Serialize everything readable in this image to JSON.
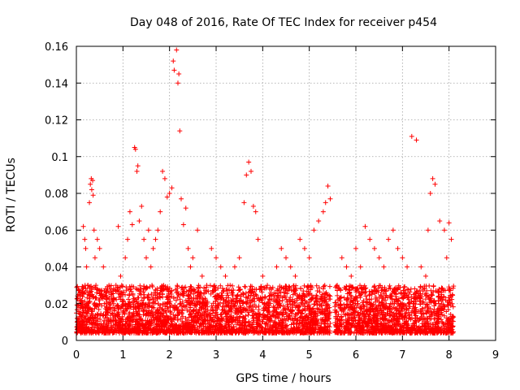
{
  "chart_data": {
    "type": "scatter",
    "title": "Day 048 of 2016, Rate Of TEC Index for receiver p454",
    "xlabel": "GPS time / hours",
    "ylabel": "ROTI / TECUs",
    "xlim": [
      0,
      9
    ],
    "ylim": [
      0,
      0.16
    ],
    "xticks": [
      "0",
      "1",
      "2",
      "3",
      "4",
      "5",
      "6",
      "7",
      "8",
      "9"
    ],
    "yticks": [
      "0",
      "0.02",
      "0.04",
      "0.06",
      "0.08",
      "0.1",
      "0.12",
      "0.14",
      "0.16"
    ],
    "grid": true,
    "marker": "plus",
    "color": "#ff0000",
    "series": [
      {
        "name": "ROTI",
        "x": [
          0.02,
          0.05,
          0.1,
          0.15,
          0.18,
          0.2,
          0.22,
          0.25,
          0.28,
          0.3,
          0.32,
          0.33,
          0.35,
          0.36,
          0.38,
          0.4,
          0.42,
          0.45,
          0.5,
          0.55,
          0.58,
          0.6,
          0.65,
          0.7,
          0.75,
          0.8,
          0.85,
          0.9,
          0.95,
          1.0,
          1.05,
          1.1,
          1.15,
          1.2,
          1.25,
          1.27,
          1.3,
          1.32,
          1.35,
          1.4,
          1.45,
          1.5,
          1.55,
          1.6,
          1.65,
          1.7,
          1.75,
          1.8,
          1.85,
          1.9,
          1.95,
          2.0,
          2.05,
          2.08,
          2.1,
          2.15,
          2.18,
          2.2,
          2.22,
          2.25,
          2.3,
          2.35,
          2.4,
          2.45,
          2.5,
          2.6,
          2.7,
          2.8,
          2.9,
          3.0,
          3.1,
          3.2,
          3.3,
          3.4,
          3.5,
          3.6,
          3.65,
          3.7,
          3.75,
          3.8,
          3.85,
          3.9,
          4.0,
          4.1,
          4.2,
          4.3,
          4.4,
          4.5,
          4.6,
          4.7,
          4.8,
          4.9,
          5.0,
          5.1,
          5.2,
          5.3,
          5.35,
          5.4,
          5.45,
          5.6,
          5.7,
          5.8,
          5.9,
          6.0,
          6.1,
          6.2,
          6.3,
          6.4,
          6.5,
          6.6,
          6.7,
          6.8,
          6.9,
          7.0,
          7.1,
          7.2,
          7.3,
          7.4,
          7.5,
          7.55,
          7.6,
          7.65,
          7.7,
          7.8,
          7.9,
          7.95,
          8.0,
          8.05
        ],
        "y": [
          0.012,
          0.025,
          0.018,
          0.062,
          0.055,
          0.05,
          0.04,
          0.03,
          0.075,
          0.085,
          0.088,
          0.082,
          0.087,
          0.079,
          0.06,
          0.045,
          0.03,
          0.055,
          0.05,
          0.025,
          0.04,
          0.02,
          0.018,
          0.03,
          0.025,
          0.02,
          0.03,
          0.062,
          0.035,
          0.025,
          0.045,
          0.055,
          0.07,
          0.063,
          0.105,
          0.104,
          0.092,
          0.095,
          0.065,
          0.073,
          0.055,
          0.045,
          0.06,
          0.04,
          0.05,
          0.055,
          0.06,
          0.07,
          0.092,
          0.088,
          0.078,
          0.08,
          0.083,
          0.152,
          0.147,
          0.158,
          0.14,
          0.145,
          0.114,
          0.077,
          0.063,
          0.072,
          0.05,
          0.04,
          0.045,
          0.06,
          0.035,
          0.03,
          0.05,
          0.045,
          0.04,
          0.035,
          0.03,
          0.04,
          0.045,
          0.075,
          0.09,
          0.097,
          0.092,
          0.073,
          0.07,
          0.055,
          0.035,
          0.03,
          0.025,
          0.04,
          0.05,
          0.045,
          0.04,
          0.035,
          0.055,
          0.05,
          0.045,
          0.06,
          0.065,
          0.07,
          0.075,
          0.084,
          0.077,
          0.03,
          0.045,
          0.04,
          0.035,
          0.05,
          0.04,
          0.062,
          0.055,
          0.05,
          0.045,
          0.04,
          0.055,
          0.06,
          0.05,
          0.045,
          0.04,
          0.111,
          0.109,
          0.04,
          0.035,
          0.06,
          0.08,
          0.088,
          0.085,
          0.065,
          0.06,
          0.045,
          0.064,
          0.055
        ]
      }
    ],
    "dense_band": {
      "description_note": "",
      "segments": [
        {
          "x_start": 0.0,
          "x_end": 5.45,
          "y_min": 0.004,
          "y_max": 0.03
        },
        {
          "x_start": 5.55,
          "x_end": 8.1,
          "y_min": 0.004,
          "y_max": 0.03
        }
      ]
    }
  }
}
